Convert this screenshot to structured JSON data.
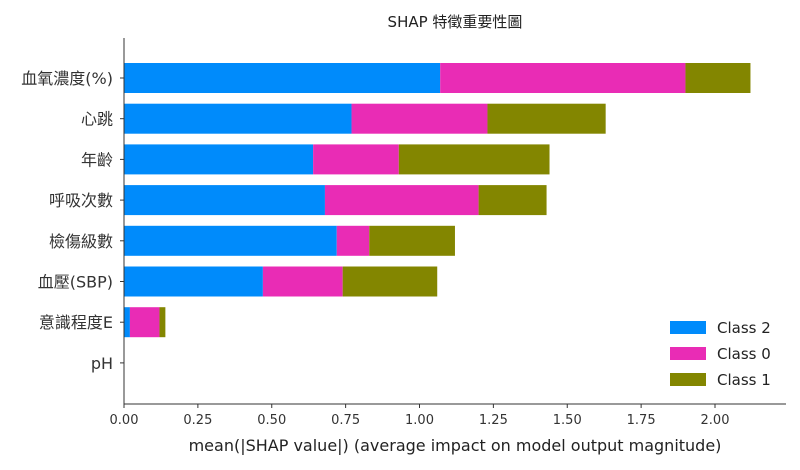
{
  "chart_data": {
    "type": "bar",
    "orientation": "horizontal",
    "stacked": true,
    "title": "SHAP 特徵重要性圖",
    "xlabel": "mean(|SHAP value|) (average impact on model output magnitude)",
    "ylabel": "",
    "xlim": [
      0,
      2.2
    ],
    "xticks": [
      "0.00",
      "0.25",
      "0.50",
      "0.75",
      "1.00",
      "1.25",
      "1.50",
      "1.75",
      "2.00"
    ],
    "categories": [
      "血氧濃度(%)",
      "心跳",
      "年齡",
      "呼吸次數",
      "檢傷級數",
      "血壓(SBP)",
      "意識程度E",
      "pH"
    ],
    "series": [
      {
        "name": "Class 2",
        "color": "#008bfb",
        "values": [
          1.07,
          0.77,
          0.64,
          0.68,
          0.72,
          0.47,
          0.02,
          0.0
        ]
      },
      {
        "name": "Class 0",
        "color": "#e92cb5",
        "values": [
          0.83,
          0.46,
          0.29,
          0.52,
          0.11,
          0.27,
          0.1,
          0.0
        ]
      },
      {
        "name": "Class 1",
        "color": "#838600",
        "values": [
          0.22,
          0.4,
          0.51,
          0.23,
          0.29,
          0.32,
          0.02,
          0.0
        ]
      }
    ],
    "legend_position": "bottom-right",
    "grid": false
  }
}
